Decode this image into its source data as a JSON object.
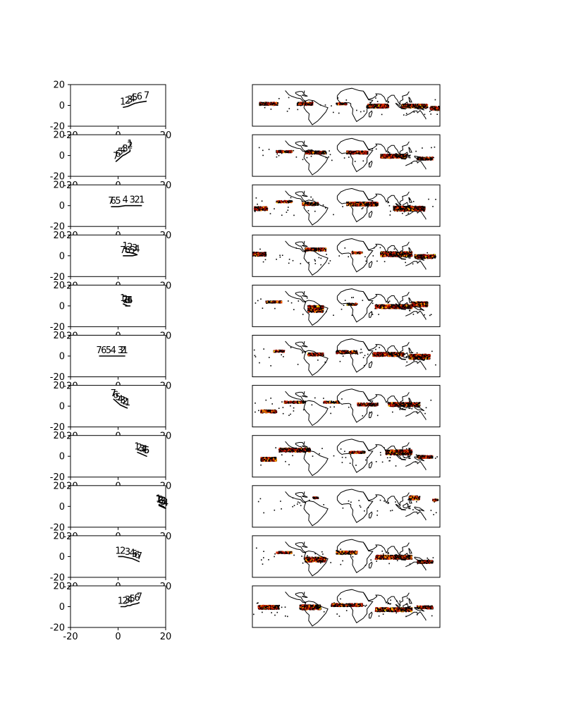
{
  "figure": {
    "background": "#ffffff"
  },
  "colors": {
    "track": "#000000",
    "frame": "#000000",
    "coast": "#000000",
    "heat": [
      "#000000",
      "#8b0000",
      "#e03000",
      "#ff8c00",
      "#ffd200"
    ]
  },
  "chart_data": [
    {
      "type": "line",
      "panels": 11,
      "xlim": [
        -20,
        20
      ],
      "ylim": [
        -20,
        20
      ],
      "xticks": [
        "-20",
        "0",
        "20"
      ],
      "yticks": [
        "20",
        "0",
        "-20"
      ],
      "series_per_panel": [
        {
          "points": [
            [
              2,
              -2
            ],
            [
              4,
              -1
            ],
            [
              5,
              0
            ],
            [
              6,
              1
            ],
            [
              7,
              2
            ],
            [
              9,
              3
            ],
            [
              12,
              4
            ]
          ],
          "day_labels": [
            "1",
            "2",
            "3",
            "4",
            "5",
            "6",
            "7"
          ]
        },
        {
          "points": [
            [
              5,
              6
            ],
            [
              5,
              4
            ],
            [
              3,
              1
            ],
            [
              2,
              0
            ],
            [
              1,
              -2
            ],
            [
              0,
              -4
            ],
            [
              -1,
              -6
            ]
          ],
          "day_labels": [
            "1",
            "2",
            "3",
            "4",
            "5",
            "6",
            "7"
          ]
        },
        {
          "points": [
            [
              10,
              0
            ],
            [
              8,
              0
            ],
            [
              6,
              0
            ],
            [
              3,
              0
            ],
            [
              0,
              -1
            ],
            [
              -2,
              -1
            ],
            [
              -3,
              -1
            ]
          ],
          "day_labels": [
            "1",
            "2",
            "3",
            "4",
            "5",
            "6",
            "7"
          ]
        },
        {
          "points": [
            [
              3,
              4
            ],
            [
              5,
              3
            ],
            [
              7,
              2
            ],
            [
              8,
              1
            ],
            [
              6,
              0
            ],
            [
              4,
              0
            ],
            [
              2,
              0
            ]
          ],
          "day_labels": [
            "1",
            "2",
            "3",
            "4",
            "5",
            "6",
            "7"
          ]
        },
        {
          "points": [
            [
              2,
              2
            ],
            [
              3,
              1
            ],
            [
              4,
              0
            ],
            [
              5,
              0
            ],
            [
              5,
              0
            ],
            [
              4,
              0
            ],
            [
              3,
              0
            ]
          ],
          "day_labels": [
            "1",
            "2",
            "3",
            "4",
            "5",
            "6",
            "7"
          ]
        },
        {
          "points": [
            [
              3,
              0
            ],
            [
              2,
              0
            ],
            [
              1,
              0
            ],
            [
              -2,
              0
            ],
            [
              -4,
              0
            ],
            [
              -6,
              0
            ],
            [
              -8,
              0
            ]
          ],
          "day_labels": [
            "1",
            "2",
            "3",
            "4",
            "5",
            "6",
            "7"
          ]
        },
        {
          "points": [
            [
              4,
              -2
            ],
            [
              3,
              -1
            ],
            [
              2,
              0
            ],
            [
              1,
              1
            ],
            [
              0,
              3
            ],
            [
              -1,
              5
            ],
            [
              -2,
              7
            ]
          ],
          "day_labels": [
            "1",
            "2",
            "3",
            "4",
            "5",
            "6",
            "7"
          ]
        },
        {
          "points": [
            [
              8,
              4
            ],
            [
              9,
              3
            ],
            [
              10,
              2
            ],
            [
              11,
              1
            ],
            [
              12,
              0
            ],
            [
              12,
              0
            ],
            [
              11,
              1
            ]
          ],
          "day_labels": [
            "1",
            "2",
            "3",
            "4",
            "5",
            "6",
            "7"
          ]
        },
        {
          "points": [
            [
              17,
              2
            ],
            [
              18,
              1
            ],
            [
              19,
              0
            ],
            [
              20,
              -2
            ],
            [
              19,
              -1
            ],
            [
              18,
              0
            ],
            [
              17,
              1
            ]
          ],
          "day_labels": [
            "1",
            "2",
            "3",
            "4",
            "5",
            "6",
            "7"
          ]
        },
        {
          "points": [
            [
              0,
              0
            ],
            [
              2,
              0
            ],
            [
              4,
              -1
            ],
            [
              6,
              -2
            ],
            [
              7,
              -3
            ],
            [
              8,
              -4
            ],
            [
              9,
              -5
            ]
          ],
          "day_labels": [
            "1",
            "2",
            "3",
            "4",
            "5",
            "6",
            "7"
          ]
        },
        {
          "points": [
            [
              1,
              0
            ],
            [
              3,
              0
            ],
            [
              4,
              1
            ],
            [
              5,
              1
            ],
            [
              6,
              2
            ],
            [
              8,
              3
            ],
            [
              9,
              4
            ]
          ],
          "day_labels": [
            "1",
            "2",
            "3",
            "4",
            "5",
            "6",
            "7"
          ]
        }
      ]
    },
    {
      "type": "heatmap",
      "panels": 11,
      "projection": "global equirectangular map, coastlines, no ticks",
      "clusters_per_panel": [
        [
          [
            -150,
            5,
            35,
            6
          ],
          [
            -80,
            5,
            30,
            6
          ],
          [
            -10,
            5,
            20,
            4
          ],
          [
            60,
            0,
            40,
            8
          ],
          [
            130,
            0,
            50,
            8
          ],
          [
            170,
            -5,
            20,
            8
          ]
        ],
        [
          [
            -120,
            10,
            30,
            4
          ],
          [
            -60,
            8,
            40,
            6
          ],
          [
            20,
            8,
            40,
            6
          ],
          [
            90,
            0,
            50,
            8
          ],
          [
            150,
            -5,
            30,
            6
          ]
        ],
        [
          [
            -165,
            -5,
            25,
            8
          ],
          [
            -120,
            10,
            30,
            4
          ],
          [
            -70,
            5,
            30,
            6
          ],
          [
            30,
            5,
            60,
            8
          ],
          [
            120,
            -5,
            60,
            10
          ]
        ],
        [
          [
            -170,
            5,
            30,
            8
          ],
          [
            -60,
            15,
            40,
            6
          ],
          [
            20,
            8,
            20,
            4
          ],
          [
            95,
            5,
            60,
            10
          ],
          [
            150,
            0,
            40,
            8
          ]
        ],
        [
          [
            -140,
            10,
            30,
            4
          ],
          [
            -60,
            -5,
            30,
            14
          ],
          [
            10,
            5,
            20,
            4
          ],
          [
            90,
            0,
            70,
            8
          ],
          [
            140,
            5,
            30,
            10
          ]
        ],
        [
          [
            -130,
            12,
            20,
            4
          ],
          [
            -60,
            5,
            30,
            6
          ],
          [
            0,
            10,
            40,
            6
          ],
          [
            80,
            5,
            60,
            8
          ],
          [
            140,
            0,
            40,
            10
          ]
        ],
        [
          [
            -150,
            -10,
            30,
            6
          ],
          [
            -100,
            10,
            40,
            4
          ],
          [
            -30,
            10,
            30,
            4
          ],
          [
            40,
            5,
            40,
            6
          ],
          [
            110,
            5,
            60,
            8
          ]
        ],
        [
          [
            -150,
            -5,
            30,
            8
          ],
          [
            -100,
            15,
            60,
            8
          ],
          [
            20,
            10,
            30,
            4
          ],
          [
            100,
            10,
            50,
            10
          ],
          [
            150,
            0,
            30,
            6
          ]
        ],
        [
          [
            -60,
            20,
            10,
            4
          ],
          [
            130,
            20,
            20,
            8
          ],
          [
            170,
            15,
            10,
            4
          ]
        ],
        [
          [
            -120,
            10,
            30,
            4
          ],
          [
            -60,
            -5,
            40,
            10
          ],
          [
            0,
            10,
            40,
            6
          ],
          [
            90,
            0,
            70,
            8
          ],
          [
            150,
            -10,
            30,
            6
          ]
        ],
        [
          [
            -150,
            0,
            40,
            8
          ],
          [
            -70,
            0,
            40,
            10
          ],
          [
            0,
            5,
            60,
            6
          ],
          [
            90,
            -5,
            70,
            8
          ],
          [
            150,
            0,
            30,
            6
          ]
        ]
      ]
    }
  ]
}
